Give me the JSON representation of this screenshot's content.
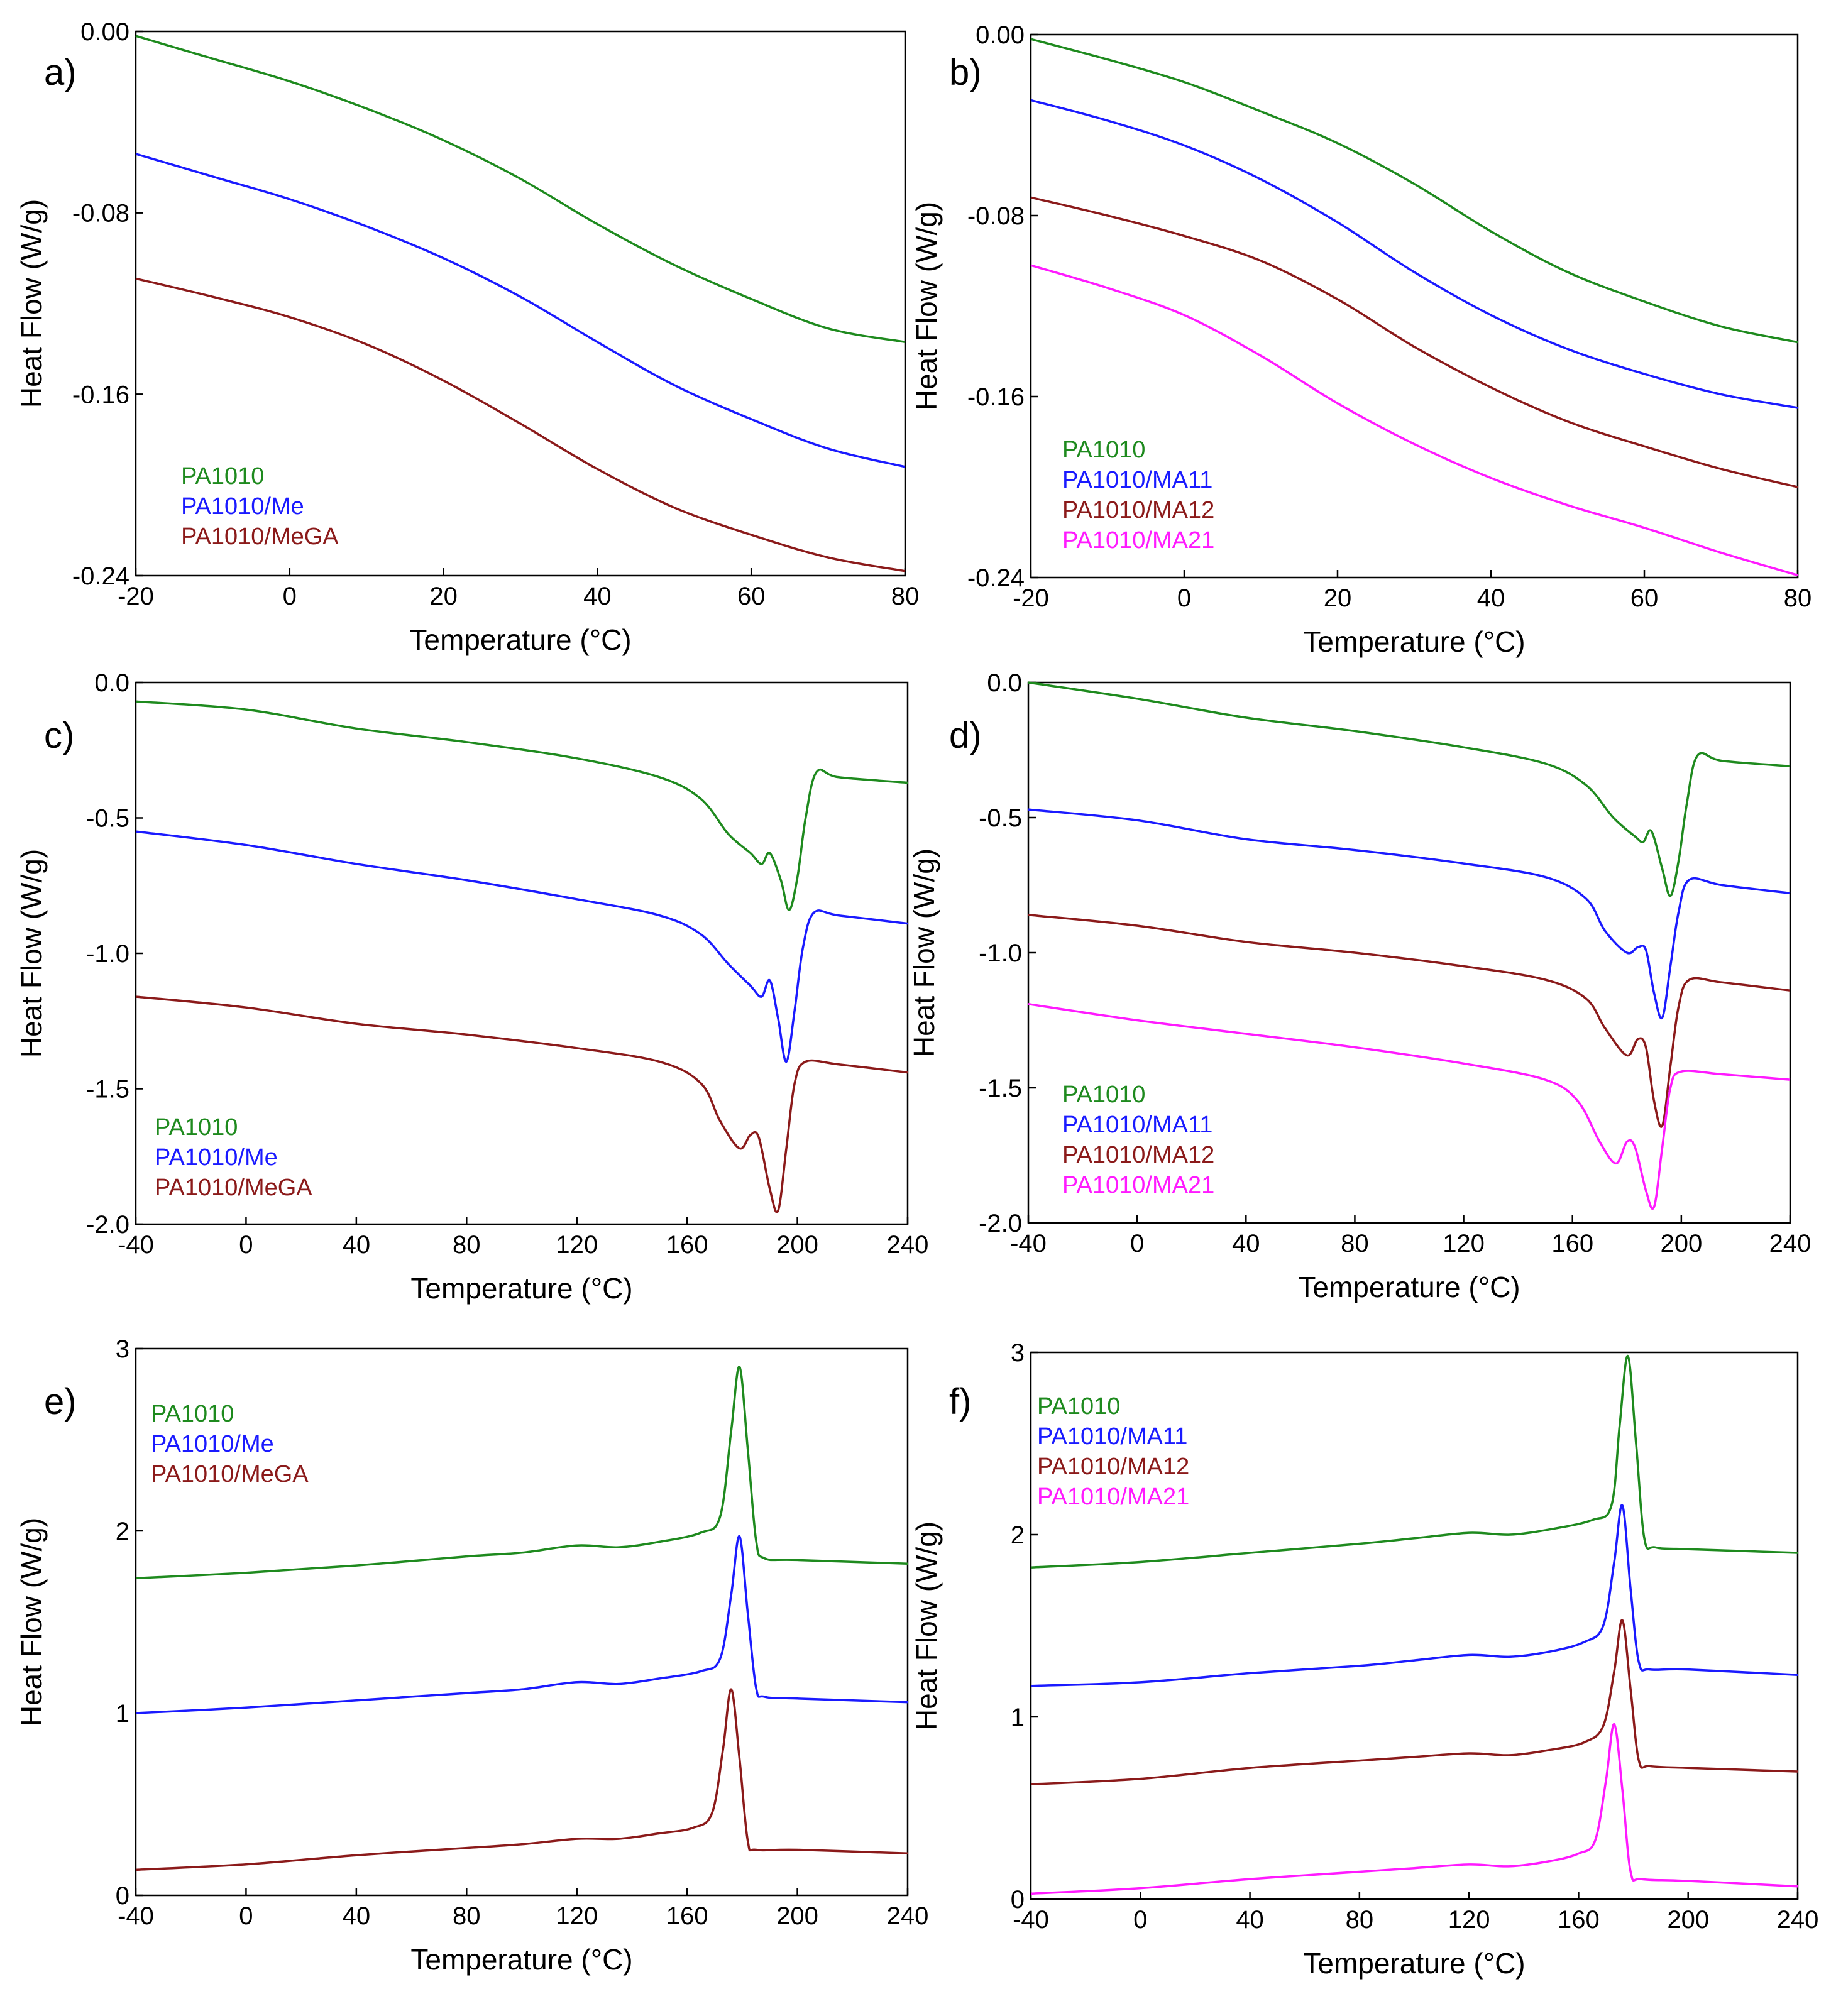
{
  "figure": {
    "description_labels": [
      "a)",
      "b)",
      "c)",
      "d)",
      "e)",
      "f)"
    ]
  },
  "colors": {
    "PA1010": "#1e8a1e",
    "PA1010/Me": "#1a1aff",
    "PA1010/MeGA": "#8b1a1a",
    "PA1010/MA11": "#1a1aff",
    "PA1010/MA12": "#8b1a1a",
    "PA1010/MA21": "#ff1aff"
  },
  "chart_data": [
    {
      "panel": "a)",
      "type": "line",
      "xlabel": "Temperature (°C)",
      "ylabel": "Heat Flow (W/g)",
      "xlim": [
        -20,
        80
      ],
      "ylim": [
        -0.24,
        0.0
      ],
      "xticks": [
        -20,
        0,
        20,
        40,
        60,
        80
      ],
      "xtick_labels": [
        "-20",
        "0",
        "20",
        "40",
        "60",
        "80"
      ],
      "yticks": [
        0.0,
        -0.08,
        -0.16,
        -0.24
      ],
      "ytick_labels": [
        "0.00",
        "-0.08",
        "-0.16",
        "-0.24"
      ],
      "legend": [
        "PA1010",
        "PA1010/Me",
        "PA1010/MeGA"
      ],
      "series": [
        {
          "name": "PA1010",
          "x": [
            -20,
            -10,
            0,
            10,
            20,
            30,
            40,
            50,
            60,
            70,
            80
          ],
          "values": [
            -0.002,
            -0.012,
            -0.022,
            -0.034,
            -0.048,
            -0.065,
            -0.085,
            -0.103,
            -0.118,
            -0.131,
            -0.137
          ]
        },
        {
          "name": "PA1010/Me",
          "x": [
            -20,
            -10,
            0,
            10,
            20,
            30,
            40,
            50,
            60,
            70,
            80
          ],
          "values": [
            -0.054,
            -0.064,
            -0.074,
            -0.086,
            -0.1,
            -0.117,
            -0.137,
            -0.156,
            -0.171,
            -0.184,
            -0.192
          ]
        },
        {
          "name": "PA1010/MeGA",
          "x": [
            -20,
            -10,
            0,
            10,
            20,
            30,
            40,
            50,
            60,
            70,
            80
          ],
          "values": [
            -0.109,
            -0.117,
            -0.126,
            -0.138,
            -0.154,
            -0.173,
            -0.193,
            -0.21,
            -0.222,
            -0.232,
            -0.238
          ]
        }
      ]
    },
    {
      "panel": "b)",
      "type": "line",
      "xlabel": "Temperature (°C)",
      "ylabel": "Heat Flow (W/g)",
      "xlim": [
        -20,
        80
      ],
      "ylim": [
        -0.24,
        0.0
      ],
      "xticks": [
        -20,
        0,
        20,
        40,
        60,
        80
      ],
      "xtick_labels": [
        "-20",
        "0",
        "20",
        "40",
        "60",
        "80"
      ],
      "yticks": [
        0.0,
        -0.08,
        -0.16,
        -0.24
      ],
      "ytick_labels": [
        "0.00",
        "-0.08",
        "-0.16",
        "-0.24"
      ],
      "legend": [
        "PA1010",
        "PA1010/MA11",
        "PA1010/MA12",
        "PA1010/MA21"
      ],
      "series": [
        {
          "name": "PA1010",
          "x": [
            -20,
            -10,
            0,
            10,
            20,
            30,
            40,
            50,
            60,
            70,
            80
          ],
          "values": [
            -0.002,
            -0.011,
            -0.021,
            -0.034,
            -0.048,
            -0.066,
            -0.087,
            -0.105,
            -0.118,
            -0.129,
            -0.136
          ]
        },
        {
          "name": "PA1010/MA11",
          "x": [
            -20,
            -10,
            0,
            10,
            20,
            30,
            40,
            50,
            60,
            70,
            80
          ],
          "values": [
            -0.029,
            -0.038,
            -0.049,
            -0.064,
            -0.083,
            -0.105,
            -0.124,
            -0.139,
            -0.15,
            -0.159,
            -0.165
          ]
        },
        {
          "name": "PA1010/MA12",
          "x": [
            -20,
            -10,
            0,
            10,
            20,
            30,
            40,
            50,
            60,
            70,
            80
          ],
          "values": [
            -0.072,
            -0.08,
            -0.089,
            -0.1,
            -0.117,
            -0.138,
            -0.156,
            -0.171,
            -0.182,
            -0.192,
            -0.2
          ]
        },
        {
          "name": "PA1010/MA21",
          "x": [
            -20,
            -10,
            0,
            10,
            20,
            30,
            40,
            50,
            60,
            70,
            80
          ],
          "values": [
            -0.102,
            -0.112,
            -0.124,
            -0.142,
            -0.163,
            -0.181,
            -0.196,
            -0.208,
            -0.218,
            -0.229,
            -0.239
          ]
        }
      ]
    },
    {
      "panel": "c)",
      "type": "line",
      "xlabel": "Temperature (°C)",
      "ylabel": "Heat Flow (W/g)",
      "xlim": [
        -40,
        240
      ],
      "ylim": [
        -2.0,
        0.0
      ],
      "xticks": [
        -40,
        0,
        40,
        80,
        120,
        160,
        200,
        240
      ],
      "xtick_labels": [
        "-40",
        "0",
        "40",
        "80",
        "120",
        "160",
        "200",
        "240"
      ],
      "yticks": [
        0.0,
        -0.5,
        -1.0,
        -1.5,
        -2.0
      ],
      "ytick_labels": [
        "0.0",
        "-0.5",
        "-1.0",
        "-1.5",
        "-2.0"
      ],
      "legend": [
        "PA1010",
        "PA1010/Me",
        "PA1010/MeGA"
      ],
      "series": [
        {
          "name": "PA1010",
          "x": [
            -40,
            0,
            40,
            80,
            120,
            150,
            165,
            175,
            183,
            187,
            190,
            194,
            197,
            200,
            203,
            207,
            215,
            240
          ],
          "values": [
            -0.07,
            -0.1,
            -0.17,
            -0.22,
            -0.28,
            -0.35,
            -0.43,
            -0.56,
            -0.63,
            -0.67,
            -0.63,
            -0.73,
            -0.84,
            -0.72,
            -0.5,
            -0.33,
            -0.35,
            -0.37
          ]
        },
        {
          "name": "PA1010/Me",
          "x": [
            -40,
            0,
            40,
            80,
            120,
            150,
            165,
            175,
            183,
            187,
            190,
            193,
            196,
            199,
            202,
            206,
            215,
            240
          ],
          "values": [
            -0.55,
            -0.6,
            -0.67,
            -0.73,
            -0.8,
            -0.86,
            -0.93,
            -1.04,
            -1.12,
            -1.16,
            -1.1,
            -1.24,
            -1.4,
            -1.21,
            -0.98,
            -0.85,
            -0.86,
            -0.89
          ]
        },
        {
          "name": "PA1010/MeGA",
          "x": [
            -40,
            0,
            40,
            80,
            120,
            150,
            165,
            172,
            179,
            183,
            186,
            190,
            193,
            196,
            199,
            203,
            215,
            240
          ],
          "values": [
            -1.16,
            -1.2,
            -1.26,
            -1.3,
            -1.35,
            -1.4,
            -1.48,
            -1.62,
            -1.72,
            -1.67,
            -1.68,
            -1.87,
            -1.95,
            -1.72,
            -1.48,
            -1.4,
            -1.41,
            -1.44
          ]
        }
      ]
    },
    {
      "panel": "d)",
      "type": "line",
      "xlabel": "Temperature (°C)",
      "ylabel": "Heat Flow (W/g)",
      "xlim": [
        -40,
        240
      ],
      "ylim": [
        -2.0,
        0.0
      ],
      "xticks": [
        -40,
        0,
        40,
        80,
        120,
        160,
        200,
        240
      ],
      "xtick_labels": [
        "-40",
        "0",
        "40",
        "80",
        "120",
        "160",
        "200",
        "240"
      ],
      "yticks": [
        0.0,
        -0.5,
        -1.0,
        -1.5,
        -2.0
      ],
      "ytick_labels": [
        "0.0",
        "-0.5",
        "-1.0",
        "-1.5",
        "-2.0"
      ],
      "legend": [
        "PA1010",
        "PA1010/MA11",
        "PA1010/MA12",
        "PA1010/MA21"
      ],
      "series": [
        {
          "name": "PA1010",
          "x": [
            -40,
            0,
            40,
            80,
            120,
            150,
            165,
            175,
            183,
            186,
            189,
            193,
            196,
            199,
            202,
            206,
            215,
            240
          ],
          "values": [
            0.0,
            -0.06,
            -0.13,
            -0.18,
            -0.24,
            -0.3,
            -0.38,
            -0.5,
            -0.57,
            -0.59,
            -0.55,
            -0.69,
            -0.79,
            -0.66,
            -0.45,
            -0.27,
            -0.29,
            -0.31
          ]
        },
        {
          "name": "PA1010/MA11",
          "x": [
            -40,
            0,
            40,
            80,
            120,
            150,
            165,
            172,
            180,
            184,
            187,
            190,
            193,
            196,
            199,
            203,
            215,
            240
          ],
          "values": [
            -0.47,
            -0.51,
            -0.58,
            -0.62,
            -0.67,
            -0.72,
            -0.8,
            -0.92,
            -1.0,
            -0.98,
            -0.99,
            -1.15,
            -1.24,
            -1.05,
            -0.85,
            -0.73,
            -0.75,
            -0.78
          ]
        },
        {
          "name": "PA1010/MA12",
          "x": [
            -40,
            0,
            40,
            80,
            120,
            150,
            165,
            172,
            180,
            184,
            187,
            190,
            193,
            196,
            199,
            203,
            215,
            240
          ],
          "values": [
            -0.86,
            -0.9,
            -0.96,
            -1.0,
            -1.05,
            -1.1,
            -1.17,
            -1.28,
            -1.38,
            -1.32,
            -1.35,
            -1.55,
            -1.64,
            -1.42,
            -1.2,
            -1.1,
            -1.11,
            -1.14
          ]
        },
        {
          "name": "PA1010/MA21",
          "x": [
            -40,
            0,
            40,
            80,
            120,
            150,
            162,
            170,
            176,
            180,
            183,
            187,
            190,
            193,
            196,
            200,
            215,
            240
          ],
          "values": [
            -1.19,
            -1.25,
            -1.3,
            -1.35,
            -1.41,
            -1.47,
            -1.55,
            -1.7,
            -1.78,
            -1.7,
            -1.72,
            -1.88,
            -1.94,
            -1.72,
            -1.5,
            -1.44,
            -1.45,
            -1.47
          ]
        }
      ]
    },
    {
      "panel": "e)",
      "type": "line",
      "xlabel": "Temperature (°C)",
      "ylabel": "Heat Flow (W/g)",
      "xlim": [
        -40,
        240
      ],
      "ylim": [
        0,
        3
      ],
      "xticks": [
        -40,
        0,
        40,
        80,
        120,
        160,
        200,
        240
      ],
      "xtick_labels": [
        "-40",
        "0",
        "40",
        "80",
        "120",
        "160",
        "200",
        "240"
      ],
      "yticks": [
        0,
        1,
        2,
        3
      ],
      "ytick_labels": [
        "0",
        "1",
        "2",
        "3"
      ],
      "legend": [
        "PA1010",
        "PA1010/Me",
        "PA1010/MeGA"
      ],
      "series": [
        {
          "name": "PA1010",
          "x": [
            -40,
            0,
            40,
            80,
            100,
            120,
            135,
            150,
            165,
            172,
            176,
            179,
            182,
            185,
            188,
            200,
            240
          ],
          "values": [
            1.74,
            1.77,
            1.81,
            1.86,
            1.88,
            1.92,
            1.91,
            1.94,
            1.99,
            2.08,
            2.55,
            2.9,
            2.45,
            1.95,
            1.85,
            1.84,
            1.82
          ]
        },
        {
          "name": "PA1010/Me",
          "x": [
            -40,
            0,
            40,
            80,
            100,
            120,
            135,
            150,
            165,
            172,
            176,
            179,
            182,
            185,
            188,
            200,
            240
          ],
          "values": [
            1.0,
            1.03,
            1.07,
            1.11,
            1.13,
            1.17,
            1.16,
            1.19,
            1.23,
            1.3,
            1.65,
            1.97,
            1.55,
            1.14,
            1.09,
            1.08,
            1.06
          ]
        },
        {
          "name": "PA1010/MeGA",
          "x": [
            -40,
            0,
            40,
            80,
            100,
            120,
            135,
            150,
            162,
            169,
            173,
            176,
            179,
            182,
            185,
            200,
            240
          ],
          "values": [
            0.14,
            0.17,
            0.22,
            0.26,
            0.28,
            0.31,
            0.31,
            0.34,
            0.37,
            0.45,
            0.8,
            1.13,
            0.75,
            0.3,
            0.25,
            0.25,
            0.23
          ]
        }
      ]
    },
    {
      "panel": "f)",
      "type": "line",
      "xlabel": "Temperature (°C)",
      "ylabel": "Heat Flow (W/g)",
      "xlim": [
        -40,
        240
      ],
      "ylim": [
        0,
        3
      ],
      "xticks": [
        -40,
        0,
        40,
        80,
        120,
        160,
        200,
        240
      ],
      "xtick_labels": [
        "-40",
        "0",
        "40",
        "80",
        "120",
        "160",
        "200",
        "240"
      ],
      "yticks": [
        0,
        1,
        2,
        3
      ],
      "ytick_labels": [
        "0",
        "1",
        "2",
        "3"
      ],
      "legend": [
        "PA1010",
        "PA1010/MA11",
        "PA1010/MA12",
        "PA1010/MA21"
      ],
      "series": [
        {
          "name": "PA1010",
          "x": [
            -40,
            0,
            40,
            80,
            100,
            120,
            135,
            150,
            165,
            172,
            175,
            178,
            181,
            184,
            188,
            200,
            240
          ],
          "values": [
            1.82,
            1.85,
            1.9,
            1.95,
            1.98,
            2.01,
            2.0,
            2.03,
            2.08,
            2.16,
            2.6,
            2.98,
            2.5,
            1.98,
            1.93,
            1.92,
            1.9
          ]
        },
        {
          "name": "PA1010/MA11",
          "x": [
            -40,
            0,
            40,
            80,
            100,
            120,
            135,
            150,
            162,
            169,
            173,
            176,
            179,
            182,
            186,
            200,
            240
          ],
          "values": [
            1.17,
            1.19,
            1.24,
            1.28,
            1.31,
            1.34,
            1.33,
            1.36,
            1.41,
            1.5,
            1.85,
            2.16,
            1.7,
            1.3,
            1.26,
            1.26,
            1.23
          ]
        },
        {
          "name": "PA1010/MA12",
          "x": [
            -40,
            0,
            40,
            80,
            100,
            120,
            135,
            150,
            162,
            169,
            173,
            176,
            179,
            182,
            186,
            200,
            240
          ],
          "values": [
            0.63,
            0.66,
            0.72,
            0.76,
            0.78,
            0.8,
            0.79,
            0.82,
            0.86,
            0.95,
            1.25,
            1.53,
            1.15,
            0.76,
            0.73,
            0.72,
            0.7
          ]
        },
        {
          "name": "PA1010/MA21",
          "x": [
            -40,
            0,
            40,
            80,
            100,
            120,
            135,
            150,
            160,
            166,
            170,
            173,
            176,
            179,
            183,
            200,
            240
          ],
          "values": [
            0.03,
            0.06,
            0.11,
            0.15,
            0.17,
            0.19,
            0.18,
            0.21,
            0.25,
            0.32,
            0.65,
            0.96,
            0.6,
            0.15,
            0.11,
            0.1,
            0.07
          ]
        }
      ]
    }
  ]
}
